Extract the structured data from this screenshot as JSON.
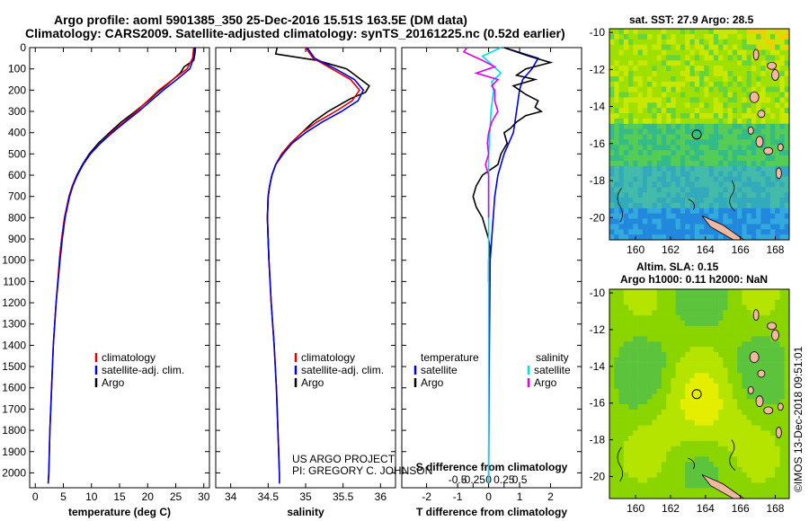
{
  "titles": {
    "line1": "Argo profile: aoml 5901385_350 25-Dec-2016 15.51S 163.5E (DM data)",
    "line2": "Climatology: CARS2009. Satellite-adjusted climatology: synTS_20161225.nc (0.52d earlier)"
  },
  "map_titles": {
    "sst": "sat. SST: 27.9 Argo: 28.5",
    "sla1": "Altim. SLA: 0.15",
    "sla2": "Argo h1000: 0.11 h2000: NaN"
  },
  "credits": {
    "project": "US ARGO PROJECT",
    "pi": "PI: GREGORY C. JOHNSON",
    "imos": "©IMOS 13-Dec-2018 09:51:01"
  },
  "colors": {
    "climatology": "#e00000",
    "satellite": "#0000e0",
    "argo": "#000000",
    "sal_satellite": "#00e0e0",
    "sal_argo": "#e000e0"
  },
  "chart_data": [
    {
      "type": "line",
      "name": "temperature",
      "xlabel": "temperature (deg C)",
      "ylabel": "",
      "xlim": [
        -1,
        31
      ],
      "ylim": [
        2070,
        0
      ],
      "xticks": [
        0,
        5,
        10,
        15,
        20,
        25,
        30
      ],
      "yticks": [
        0,
        100,
        200,
        300,
        400,
        500,
        600,
        700,
        800,
        900,
        1000,
        1100,
        1200,
        1300,
        1400,
        1500,
        1600,
        1700,
        1800,
        1900,
        2000
      ],
      "legend": [
        "climatology",
        "satellite-adj. clim.",
        "Argo"
      ],
      "legend_position": "bottom-center",
      "series": [
        {
          "name": "climatology",
          "depth": [
            0,
            50,
            100,
            150,
            200,
            250,
            300,
            350,
            400,
            450,
            500,
            550,
            600,
            650,
            700,
            800,
            900,
            1000,
            1200,
            1400,
            1600,
            1800,
            2000,
            2050
          ],
          "values": [
            28.2,
            28.0,
            27.0,
            24.5,
            22.0,
            20.0,
            18.0,
            15.8,
            13.5,
            11.5,
            9.8,
            8.5,
            7.5,
            6.6,
            6.0,
            5.2,
            4.7,
            4.3,
            3.7,
            3.2,
            2.9,
            2.6,
            2.4,
            2.3
          ]
        },
        {
          "name": "satellite-adj. clim.",
          "depth": [
            0,
            50,
            100,
            150,
            200,
            250,
            300,
            350,
            400,
            450,
            500,
            550,
            600,
            650,
            700,
            800,
            900,
            1000,
            1200,
            1400,
            1600,
            1800,
            2000,
            2050
          ],
          "values": [
            28.3,
            28.2,
            27.5,
            25.2,
            22.8,
            20.6,
            18.4,
            16.0,
            13.7,
            11.6,
            9.8,
            8.5,
            7.5,
            6.7,
            6.1,
            5.3,
            4.8,
            4.4,
            3.7,
            3.2,
            2.9,
            2.6,
            2.4,
            2.3
          ]
        },
        {
          "name": "Argo",
          "depth": [
            0,
            30,
            60,
            90,
            120,
            150,
            180,
            210,
            240,
            270,
            300,
            350,
            400,
            450,
            500,
            550,
            600,
            650,
            700,
            750,
            800,
            900,
            1000
          ],
          "values": [
            28.5,
            28.4,
            28.2,
            26.5,
            25.8,
            24.5,
            23.2,
            21.8,
            20.6,
            19.2,
            17.8,
            15.3,
            13.2,
            11.2,
            9.6,
            8.4,
            7.4,
            6.6,
            6.0,
            5.6,
            5.2,
            4.7,
            4.3
          ]
        }
      ]
    },
    {
      "type": "line",
      "name": "salinity",
      "xlabel": "salinity",
      "ylabel": "",
      "xlim": [
        33.8,
        36.2
      ],
      "ylim": [
        2070,
        0
      ],
      "xticks": [
        34,
        34.5,
        35,
        35.5,
        36
      ],
      "xtick_labels": [
        "34",
        "34.5",
        "35",
        "35.5",
        "36"
      ],
      "legend": [
        "climatology",
        "satellite-adj. clim.",
        "Argo"
      ],
      "legend_position": "bottom-center",
      "series": [
        {
          "name": "climatology",
          "depth": [
            0,
            50,
            100,
            150,
            200,
            250,
            300,
            350,
            400,
            450,
            500,
            550,
            600,
            650,
            700,
            800,
            900,
            1000,
            1200,
            1400,
            1600,
            1800,
            2000,
            2050
          ],
          "values": [
            35.0,
            35.1,
            35.35,
            35.6,
            35.72,
            35.62,
            35.4,
            35.15,
            34.95,
            34.8,
            34.68,
            34.6,
            34.55,
            34.52,
            34.5,
            34.49,
            34.5,
            34.51,
            34.54,
            34.58,
            34.61,
            34.63,
            34.65,
            34.65
          ]
        },
        {
          "name": "satellite-adj. clim.",
          "depth": [
            0,
            50,
            100,
            150,
            200,
            250,
            300,
            350,
            400,
            450,
            500,
            550,
            600,
            650,
            700,
            800,
            900,
            1000,
            1200,
            1400,
            1600,
            1800,
            2000,
            2050
          ],
          "values": [
            35.02,
            35.12,
            35.4,
            35.65,
            35.77,
            35.7,
            35.48,
            35.22,
            35.0,
            34.82,
            34.7,
            34.6,
            34.55,
            34.52,
            34.5,
            34.49,
            34.5,
            34.51,
            34.54,
            34.58,
            34.61,
            34.63,
            34.65,
            34.65
          ]
        },
        {
          "name": "Argo",
          "depth": [
            0,
            30,
            60,
            100,
            140,
            180,
            210,
            240,
            270,
            300,
            350,
            400,
            450,
            500,
            550,
            600,
            650,
            700,
            800,
            900,
            1000
          ],
          "values": [
            34.62,
            34.6,
            35.15,
            35.55,
            35.7,
            35.85,
            35.8,
            35.6,
            35.45,
            35.3,
            35.1,
            34.95,
            34.8,
            34.68,
            34.6,
            34.55,
            34.52,
            34.5,
            34.49,
            34.5,
            34.51
          ]
        }
      ]
    },
    {
      "type": "line",
      "name": "differences",
      "xlabel": "T difference from climatology",
      "xlabel2": "S difference from climatology",
      "ylabel": "",
      "xlim": [
        -2.8,
        3.0
      ],
      "ylim": [
        2070,
        0
      ],
      "xticks": [
        -2,
        -1,
        0,
        1,
        2
      ],
      "s_ticks": [
        -0.5,
        -0.25,
        0,
        0.25,
        0.5
      ],
      "s_tick_labels": [
        "-0.5",
        "-0.25",
        "0",
        "0.25",
        "0.5"
      ],
      "legend_titles": [
        "temperature",
        "salinity"
      ],
      "legend_t": [
        "satellite",
        "Argo"
      ],
      "legend_s": [
        "satellite",
        "Argo"
      ],
      "legend_position": "bottom",
      "series": [
        {
          "name": "T satellite",
          "depth": [
            0,
            50,
            100,
            150,
            200,
            300,
            400,
            500,
            600,
            700,
            800,
            900,
            1000,
            1500,
            2050
          ],
          "values": [
            0.5,
            1.6,
            1.4,
            1.1,
            1.0,
            0.9,
            0.8,
            0.5,
            0.3,
            0.2,
            0.15,
            0.1,
            0.05,
            0.02,
            0.0
          ]
        },
        {
          "name": "T Argo",
          "depth": [
            0,
            40,
            70,
            100,
            130,
            150,
            180,
            200,
            220,
            250,
            280,
            300,
            320,
            350,
            380,
            400,
            450,
            500,
            550,
            600,
            650,
            700,
            750,
            800,
            850,
            900,
            950,
            1000,
            1100
          ],
          "values": [
            0.5,
            1.3,
            2.0,
            1.2,
            0.9,
            1.5,
            0.8,
            1.0,
            1.2,
            1.6,
            1.5,
            1.7,
            1.2,
            0.9,
            0.7,
            0.5,
            0.6,
            0.4,
            0.3,
            -0.2,
            -0.4,
            -0.5,
            -0.4,
            -0.2,
            -0.1,
            0.0,
            0.05,
            0.0,
            0.0
          ]
        },
        {
          "name": "S satellite",
          "depth": [
            0,
            40,
            80,
            120,
            160,
            200,
            300,
            400,
            500,
            700,
            1000,
            1500,
            2050
          ],
          "values": [
            0.2,
            -0.1,
            0.05,
            0.2,
            0.05,
            0.08,
            0.04,
            0.02,
            0.0,
            0.0,
            0.0,
            0.0,
            0.0
          ]
        },
        {
          "name": "S Argo",
          "depth": [
            0,
            20,
            40,
            60,
            90,
            120,
            150,
            180,
            200,
            250,
            300,
            350,
            400,
            450,
            500,
            550,
            600,
            700,
            800
          ],
          "values": [
            -0.35,
            -0.4,
            -0.25,
            -0.1,
            0.1,
            -0.2,
            0.15,
            0.05,
            0.1,
            0.1,
            0.15,
            0.05,
            0.0,
            -0.02,
            0.0,
            -0.05,
            0.0,
            0.0,
            0.0
          ]
        }
      ]
    },
    {
      "type": "heatmap",
      "name": "sst-map",
      "title": "sat. SST: 27.9 Argo: 28.5",
      "xticks": [
        160,
        162,
        164,
        166,
        168
      ],
      "yticks": [
        -10,
        -12,
        -14,
        -16,
        -18,
        -20
      ],
      "xlim": [
        158.5,
        168.8
      ],
      "ylim": [
        -21.2,
        -9.8
      ],
      "float_position": [
        163.5,
        -15.51
      ]
    },
    {
      "type": "heatmap",
      "name": "sla-map",
      "title": "Altim. SLA: 0.15",
      "xticks": [
        160,
        162,
        164,
        166,
        168
      ],
      "yticks": [
        -10,
        -12,
        -14,
        -16,
        -18,
        -20
      ],
      "xlim": [
        158.5,
        168.8
      ],
      "ylim": [
        -21.2,
        -9.8
      ],
      "float_position": [
        163.5,
        -15.51
      ]
    }
  ]
}
